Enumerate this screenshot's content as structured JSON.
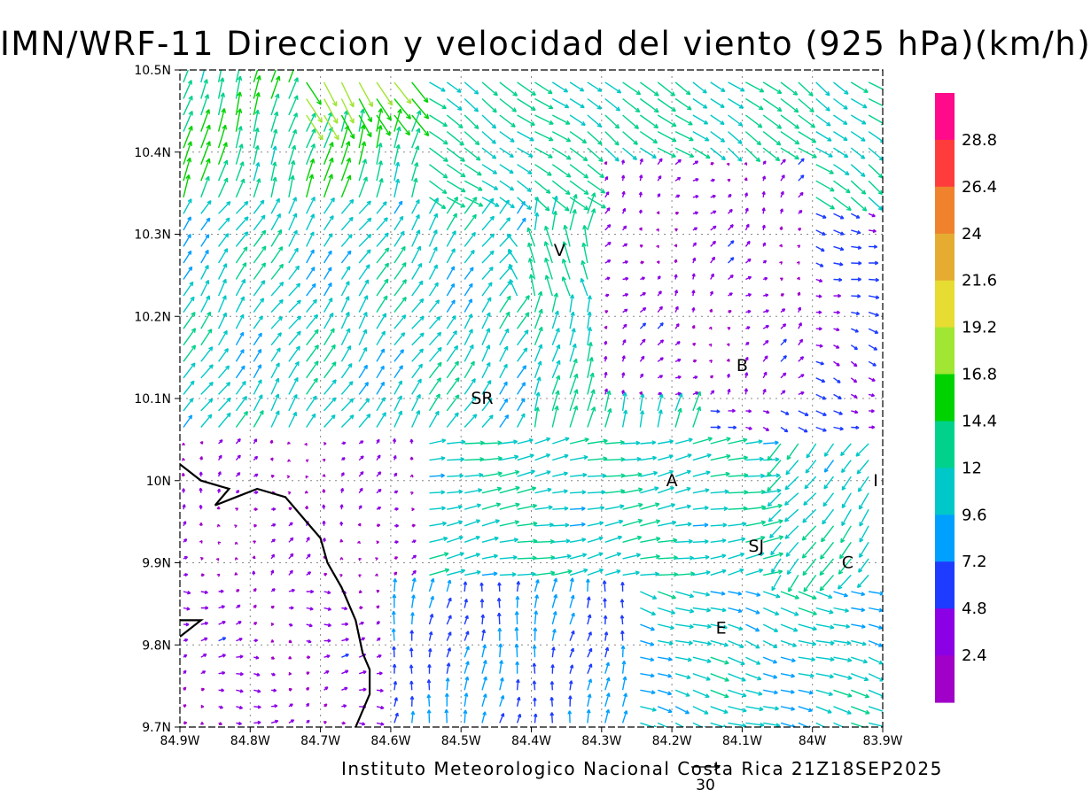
{
  "title": "IMN/WRF-11 Direccion y velocidad del viento (925 hPa)(km/h)",
  "credit": "Instituto Meteorologico Nacional Costa Rica 21Z18SEP2025",
  "reference_vector": {
    "label": "30",
    "speed": 30
  },
  "chart_data": {
    "type": "vector-map",
    "x_ticks": [
      "84.9W",
      "84.8W",
      "84.7W",
      "84.6W",
      "84.5W",
      "84.4W",
      "84.3W",
      "84.2W",
      "84.1W",
      "84W",
      "83.9W"
    ],
    "y_ticks": [
      "10.5N",
      "10.4N",
      "10.3N",
      "10.2N",
      "10.1N",
      "10N",
      "9.9N",
      "9.8N",
      "9.7N"
    ],
    "lon_range": [
      -84.9,
      -83.9
    ],
    "lat_range": [
      9.7,
      10.5
    ],
    "grid": true,
    "places": [
      {
        "label": "V",
        "lon": -84.36,
        "lat": 10.28
      },
      {
        "label": "SR",
        "lon": -84.47,
        "lat": 10.1
      },
      {
        "label": "B",
        "lon": -84.1,
        "lat": 10.14
      },
      {
        "label": "A",
        "lon": -84.2,
        "lat": 10.0
      },
      {
        "label": "I",
        "lon": -83.91,
        "lat": 10.0
      },
      {
        "label": "SJ",
        "lon": -84.08,
        "lat": 9.92
      },
      {
        "label": "C",
        "lon": -83.95,
        "lat": 9.9
      },
      {
        "label": "E",
        "lon": -84.13,
        "lat": 9.82
      }
    ],
    "colorbar": {
      "labels": [
        "28.8",
        "26.4",
        "24",
        "21.6",
        "19.2",
        "16.8",
        "14.4",
        "12",
        "9.6",
        "7.2",
        "4.8",
        "2.4"
      ],
      "colors": [
        "#ff0a8a",
        "#ff3c3c",
        "#f0822d",
        "#e6ac32",
        "#e6dc32",
        "#a0e632",
        "#00d200",
        "#00d28c",
        "#00c8c8",
        "#00a0ff",
        "#1e3cff",
        "#8c00e6",
        "#a000c8"
      ]
    },
    "coastline": [
      [
        -84.9,
        10.02
      ],
      [
        -84.87,
        10.0
      ],
      [
        -84.83,
        9.99
      ],
      [
        -84.85,
        9.97
      ],
      [
        -84.82,
        9.98
      ],
      [
        -84.79,
        9.99
      ],
      [
        -84.75,
        9.98
      ],
      [
        -84.72,
        9.95
      ],
      [
        -84.7,
        9.93
      ],
      [
        -84.69,
        9.9
      ],
      [
        -84.67,
        9.87
      ],
      [
        -84.65,
        9.83
      ],
      [
        -84.64,
        9.79
      ],
      [
        -84.63,
        9.77
      ],
      [
        -84.63,
        9.74
      ],
      [
        -84.65,
        9.7
      ]
    ],
    "coastline2": [
      [
        -84.9,
        9.81
      ],
      [
        -84.87,
        9.83
      ],
      [
        -84.9,
        9.83
      ]
    ]
  }
}
